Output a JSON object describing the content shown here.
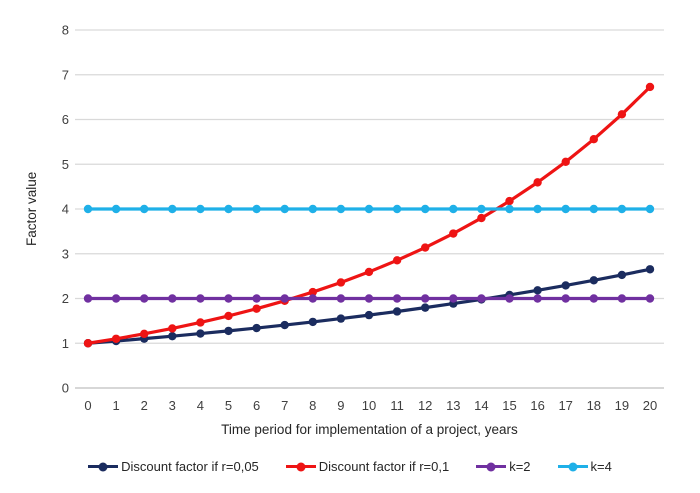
{
  "chart_data": {
    "type": "line",
    "title": "",
    "xlabel": "Time period for implementation of a project, years",
    "ylabel": "Factor value",
    "x": [
      0,
      1,
      2,
      3,
      4,
      5,
      6,
      7,
      8,
      9,
      10,
      11,
      12,
      13,
      14,
      15,
      16,
      17,
      18,
      19,
      20
    ],
    "yticks": [
      0,
      1,
      2,
      3,
      4,
      5,
      6,
      7,
      8
    ],
    "ylim": [
      0,
      8
    ],
    "grid": "horizontal",
    "legend_position": "bottom",
    "colors": {
      "gridline": "#d9d9d9",
      "axis_line": "#bfbfbf",
      "tick_text": "#404040"
    },
    "series": [
      {
        "name": "Discount factor if r=0,05",
        "color": "#1b2c5f",
        "values": [
          1,
          1.05,
          1.103,
          1.158,
          1.216,
          1.276,
          1.34,
          1.407,
          1.477,
          1.551,
          1.629,
          1.71,
          1.796,
          1.886,
          1.98,
          2.079,
          2.183,
          2.292,
          2.407,
          2.527,
          2.653
        ]
      },
      {
        "name": "Discount factor if r=0,1",
        "color": "#ee1414",
        "values": [
          1,
          1.1,
          1.21,
          1.331,
          1.464,
          1.611,
          1.772,
          1.949,
          2.144,
          2.358,
          2.594,
          2.853,
          3.138,
          3.452,
          3.797,
          4.177,
          4.595,
          5.054,
          5.56,
          6.116,
          6.727
        ]
      },
      {
        "name": "k=2",
        "color": "#7030a0",
        "values": [
          2,
          2,
          2,
          2,
          2,
          2,
          2,
          2,
          2,
          2,
          2,
          2,
          2,
          2,
          2,
          2,
          2,
          2,
          2,
          2,
          2
        ]
      },
      {
        "name": "k=4",
        "color": "#1fb0e8",
        "values": [
          4,
          4,
          4,
          4,
          4,
          4,
          4,
          4,
          4,
          4,
          4,
          4,
          4,
          4,
          4,
          4,
          4,
          4,
          4,
          4,
          4
        ]
      }
    ]
  }
}
